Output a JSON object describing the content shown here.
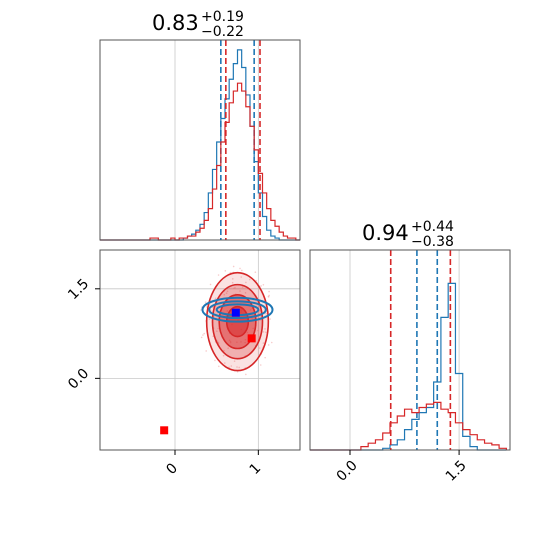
{
  "colors": {
    "blue": "#1f77b4",
    "red": "#d62728",
    "marker_blue": "#0000ff",
    "marker_red": "#ff0000"
  },
  "chart_data": [
    {
      "type": "histogram",
      "panel": "top-left",
      "title_value": "0.83",
      "title_plus": "+0.19",
      "title_minus": "−0.22",
      "xlim": [
        -0.9,
        1.5
      ],
      "grid": true,
      "bins": [
        -0.9,
        -0.85,
        -0.8,
        -0.75,
        -0.7,
        -0.65,
        -0.6,
        -0.55,
        -0.5,
        -0.45,
        -0.4,
        -0.35,
        -0.3,
        -0.25,
        -0.2,
        -0.15,
        -0.1,
        -0.05,
        0.0,
        0.05,
        0.1,
        0.15,
        0.2,
        0.25,
        0.3,
        0.35,
        0.4,
        0.45,
        0.5,
        0.55,
        0.6,
        0.65,
        0.7,
        0.75,
        0.8,
        0.85,
        0.9,
        0.95,
        1.0,
        1.05,
        1.1,
        1.15,
        1.2,
        1.25,
        1.3,
        1.35,
        1.4,
        1.45,
        1.5
      ],
      "series": [
        {
          "color_key": "blue",
          "counts": [
            0,
            0,
            0,
            0,
            0,
            0,
            0,
            0,
            0,
            0,
            0,
            0,
            0,
            0,
            0,
            0,
            0,
            0,
            0,
            0,
            0.01,
            0.02,
            0.03,
            0.05,
            0.08,
            0.14,
            0.24,
            0.36,
            0.5,
            0.62,
            0.72,
            0.82,
            0.9,
            0.97,
            0.88,
            0.74,
            0.58,
            0.4,
            0.24,
            0.12,
            0.05,
            0.02,
            0.01,
            0,
            0,
            0,
            0,
            0
          ],
          "quantiles": [
            0.55,
            0.95
          ]
        },
        {
          "color_key": "red",
          "counts": [
            0,
            0,
            0,
            0,
            0,
            0,
            0,
            0,
            0,
            0,
            0,
            0,
            0.01,
            0.01,
            0,
            0,
            0,
            0.01,
            0,
            0.01,
            0.01,
            0.02,
            0.02,
            0.04,
            0.06,
            0.1,
            0.16,
            0.26,
            0.38,
            0.5,
            0.6,
            0.7,
            0.76,
            0.8,
            0.76,
            0.68,
            0.58,
            0.46,
            0.34,
            0.24,
            0.16,
            0.1,
            0.07,
            0.04,
            0.02,
            0.01,
            0.01,
            0
          ],
          "quantiles": [
            0.61,
            1.02
          ]
        }
      ]
    },
    {
      "type": "contour",
      "panel": "bottom-left",
      "xlim": [
        -0.9,
        1.5
      ],
      "ylim": [
        -1.2,
        2.15
      ],
      "x_ticks": [
        "0",
        "1"
      ],
      "y_ticks": [
        "0.0",
        "1.5"
      ],
      "x_tick_values": [
        0,
        1
      ],
      "y_tick_values": [
        0.0,
        1.5
      ],
      "grid": true,
      "red_levels": [
        {
          "rx": 0.37,
          "ry": 0.82,
          "fill_alpha": 0.22
        },
        {
          "rx": 0.3,
          "ry": 0.62,
          "fill_alpha": 0.45
        },
        {
          "rx": 0.22,
          "ry": 0.45,
          "fill_alpha": 0.75
        },
        {
          "rx": 0.13,
          "ry": 0.25,
          "fill_alpha": 0.9
        }
      ],
      "red_center": [
        0.75,
        0.95
      ],
      "blue_center": [
        0.75,
        1.15
      ],
      "blue_levels": [
        {
          "rx": 0.42,
          "ry": 0.2
        },
        {
          "rx": 0.34,
          "ry": 0.14
        },
        {
          "rx": 0.25,
          "ry": 0.09
        }
      ],
      "markers": [
        {
          "x": 0.73,
          "y": 1.1,
          "color_key": "marker_blue"
        },
        {
          "x": 0.92,
          "y": 0.67,
          "color_key": "marker_red"
        },
        {
          "x": -0.13,
          "y": -0.87,
          "color_key": "marker_red"
        }
      ]
    },
    {
      "type": "histogram",
      "panel": "bottom-right",
      "title_value": "0.94",
      "title_plus": "+0.44",
      "title_minus": "−0.38",
      "xlim": [
        -0.55,
        2.2
      ],
      "x_ticks": [
        "0.0",
        "1.5"
      ],
      "x_tick_values": [
        0.0,
        1.5
      ],
      "grid": true,
      "bins": [
        -0.55,
        -0.45,
        -0.35,
        -0.25,
        -0.15,
        -0.05,
        0.05,
        0.15,
        0.25,
        0.35,
        0.45,
        0.55,
        0.65,
        0.75,
        0.85,
        0.95,
        1.05,
        1.15,
        1.25,
        1.35,
        1.45,
        1.55,
        1.65,
        1.75,
        1.85,
        1.95,
        2.05,
        2.15
      ],
      "series": [
        {
          "color_key": "blue",
          "counts": [
            0,
            0,
            0,
            0,
            0,
            0,
            0,
            0,
            0,
            0,
            0.01,
            0.03,
            0.06,
            0.12,
            0.18,
            0.22,
            0.25,
            0.4,
            0.78,
            0.98,
            0.45,
            0.08,
            0.02,
            0,
            0,
            0,
            0
          ],
          "quantiles": [
            0.92,
            1.2
          ]
        },
        {
          "color_key": "red",
          "counts": [
            0,
            0,
            0,
            0,
            0,
            0,
            0,
            0.02,
            0.04,
            0.06,
            0.1,
            0.16,
            0.2,
            0.24,
            0.22,
            0.25,
            0.27,
            0.28,
            0.24,
            0.22,
            0.16,
            0.12,
            0.09,
            0.06,
            0.04,
            0.03,
            0.01
          ],
          "quantiles": [
            0.56,
            1.38
          ]
        }
      ]
    }
  ]
}
